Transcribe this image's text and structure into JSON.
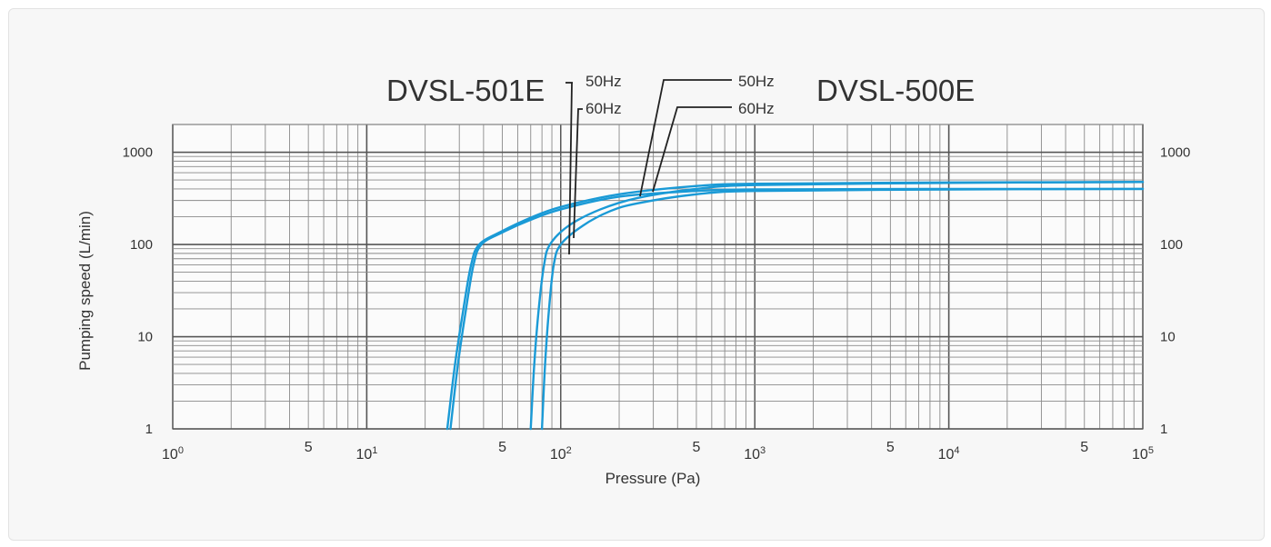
{
  "chart_data": {
    "type": "line",
    "title": "",
    "xlabel": "Pressure (Pa)",
    "ylabel": "Pumping speed (L/min)",
    "xscale": "log",
    "yscale": "log",
    "xlim": [
      1,
      100000
    ],
    "ylim": [
      1,
      2000
    ],
    "grid": true,
    "x_ticks": [
      {
        "value": 1,
        "base": "10",
        "exp": "0"
      },
      {
        "value": 5,
        "label": "5"
      },
      {
        "value": 10,
        "base": "10",
        "exp": "1"
      },
      {
        "value": 50,
        "label": "5"
      },
      {
        "value": 100,
        "base": "10",
        "exp": "2"
      },
      {
        "value": 500,
        "label": "5"
      },
      {
        "value": 1000,
        "base": "10",
        "exp": "3"
      },
      {
        "value": 5000,
        "label": "5"
      },
      {
        "value": 10000,
        "base": "10",
        "exp": "4"
      },
      {
        "value": 50000,
        "label": "5"
      },
      {
        "value": 100000,
        "base": "10",
        "exp": "5"
      }
    ],
    "y_ticks": [
      {
        "value": 1,
        "label": "1"
      },
      {
        "value": 10,
        "label": "10"
      },
      {
        "value": 100,
        "label": "100"
      },
      {
        "value": 1000,
        "label": "1000"
      }
    ],
    "models": [
      {
        "name": "DVSL-501E",
        "labels": [
          "50Hz",
          "60Hz"
        ]
      },
      {
        "name": "DVSL-500E",
        "labels": [
          "50Hz",
          "60Hz"
        ]
      }
    ],
    "series": [
      {
        "name": "DVSL-501E 50Hz",
        "color": "#1a9ad6",
        "points": [
          [
            27,
            1
          ],
          [
            29.5,
            5
          ],
          [
            32.5,
            20
          ],
          [
            35.5,
            60
          ],
          [
            39,
            100
          ],
          [
            50,
            135
          ],
          [
            70,
            185
          ],
          [
            100,
            240
          ],
          [
            200,
            330
          ],
          [
            500,
            380
          ],
          [
            1000,
            395
          ],
          [
            10000,
            400
          ],
          [
            100000,
            400
          ]
        ]
      },
      {
        "name": "DVSL-501E 60Hz",
        "color": "#1a9ad6",
        "points": [
          [
            26,
            1
          ],
          [
            28.5,
            5
          ],
          [
            31.5,
            20
          ],
          [
            34.5,
            60
          ],
          [
            38,
            100
          ],
          [
            50,
            140
          ],
          [
            70,
            195
          ],
          [
            100,
            255
          ],
          [
            200,
            350
          ],
          [
            500,
            430
          ],
          [
            1000,
            455
          ],
          [
            10000,
            470
          ],
          [
            100000,
            475
          ]
        ]
      },
      {
        "name": "DVSL-500E 50Hz",
        "color": "#1a9ad6",
        "points": [
          [
            80,
            1
          ],
          [
            83,
            5
          ],
          [
            87,
            20
          ],
          [
            92,
            60
          ],
          [
            100,
            100
          ],
          [
            130,
            160
          ],
          [
            180,
            230
          ],
          [
            250,
            280
          ],
          [
            500,
            350
          ],
          [
            1000,
            380
          ],
          [
            10000,
            395
          ],
          [
            100000,
            400
          ]
        ]
      },
      {
        "name": "DVSL-500E 60Hz",
        "color": "#1a9ad6",
        "points": [
          [
            70,
            1
          ],
          [
            73,
            5
          ],
          [
            77,
            20
          ],
          [
            82,
            60
          ],
          [
            88,
            100
          ],
          [
            110,
            160
          ],
          [
            160,
            240
          ],
          [
            250,
            320
          ],
          [
            500,
            400
          ],
          [
            1000,
            440
          ],
          [
            10000,
            465
          ],
          [
            100000,
            475
          ]
        ]
      }
    ]
  }
}
